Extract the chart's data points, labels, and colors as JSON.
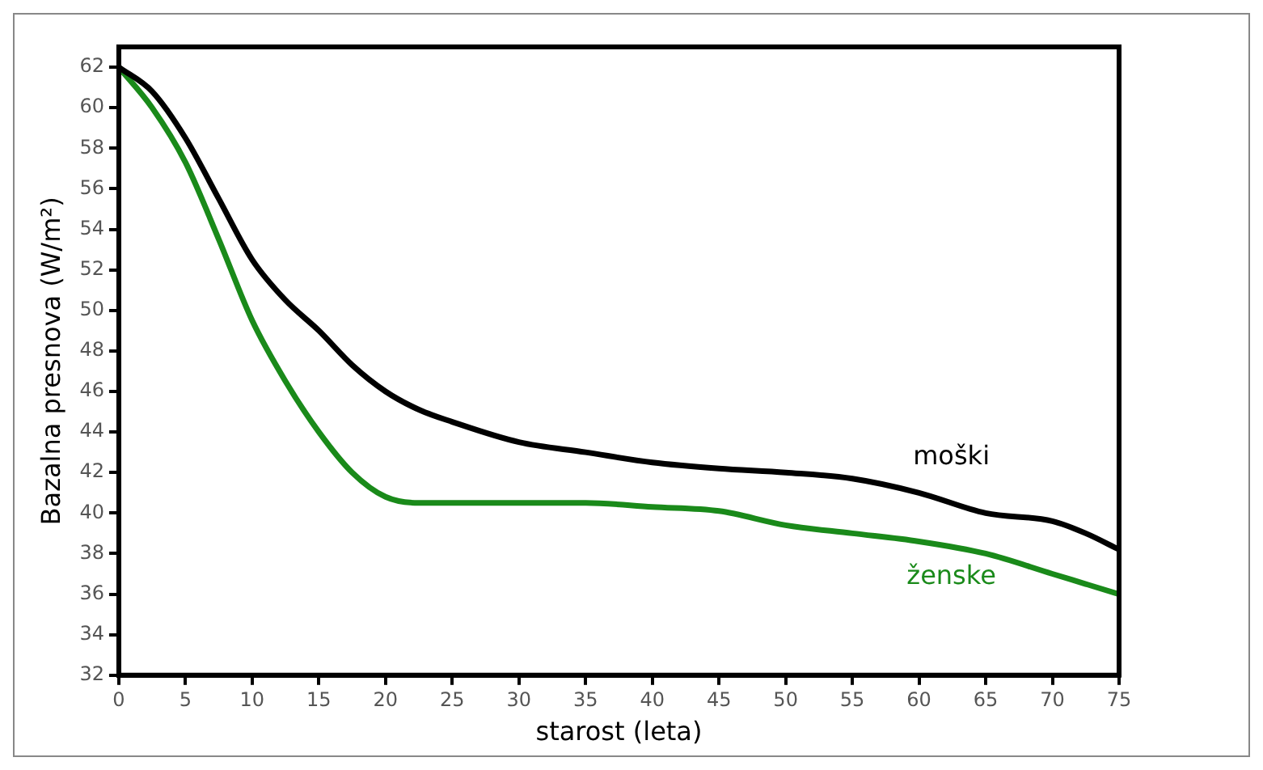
{
  "chart_data": {
    "type": "line",
    "xlabel": "starost (leta)",
    "ylabel": "Bazalna presnova (W/m²)",
    "x": [
      0,
      2.5,
      5,
      7.5,
      10,
      12.5,
      15,
      17.5,
      20,
      22.5,
      25,
      30,
      35,
      40,
      45,
      50,
      55,
      60,
      65,
      70,
      72.5,
      75
    ],
    "series": [
      {
        "name": "moški",
        "color": "#000000",
        "values": [
          62,
          60.8,
          58.5,
          55.5,
          52.5,
          50.5,
          49,
          47.3,
          46,
          45.1,
          44.5,
          43.5,
          43,
          42.5,
          42.2,
          42,
          41.7,
          41,
          40,
          39.6,
          39,
          38.2
        ]
      },
      {
        "name": "ženske",
        "color": "#1a8a1a",
        "values": [
          62,
          60,
          57.3,
          53.5,
          49.5,
          46.5,
          44,
          42,
          40.8,
          40.5,
          40.5,
          40.5,
          40.5,
          40.3,
          40.1,
          39.4,
          39,
          38.6,
          38,
          37,
          36.5,
          36
        ]
      }
    ],
    "xlim": [
      0,
      75
    ],
    "xticks": [
      0,
      5,
      10,
      15,
      20,
      25,
      30,
      35,
      40,
      45,
      50,
      55,
      60,
      65,
      70,
      75
    ],
    "ylim": [
      32,
      63
    ],
    "yticks": [
      32,
      34,
      36,
      38,
      40,
      42,
      44,
      46,
      48,
      50,
      52,
      54,
      56,
      58,
      60,
      62
    ],
    "grid": false,
    "legend": false,
    "marker": "none",
    "line_style": "solid"
  }
}
